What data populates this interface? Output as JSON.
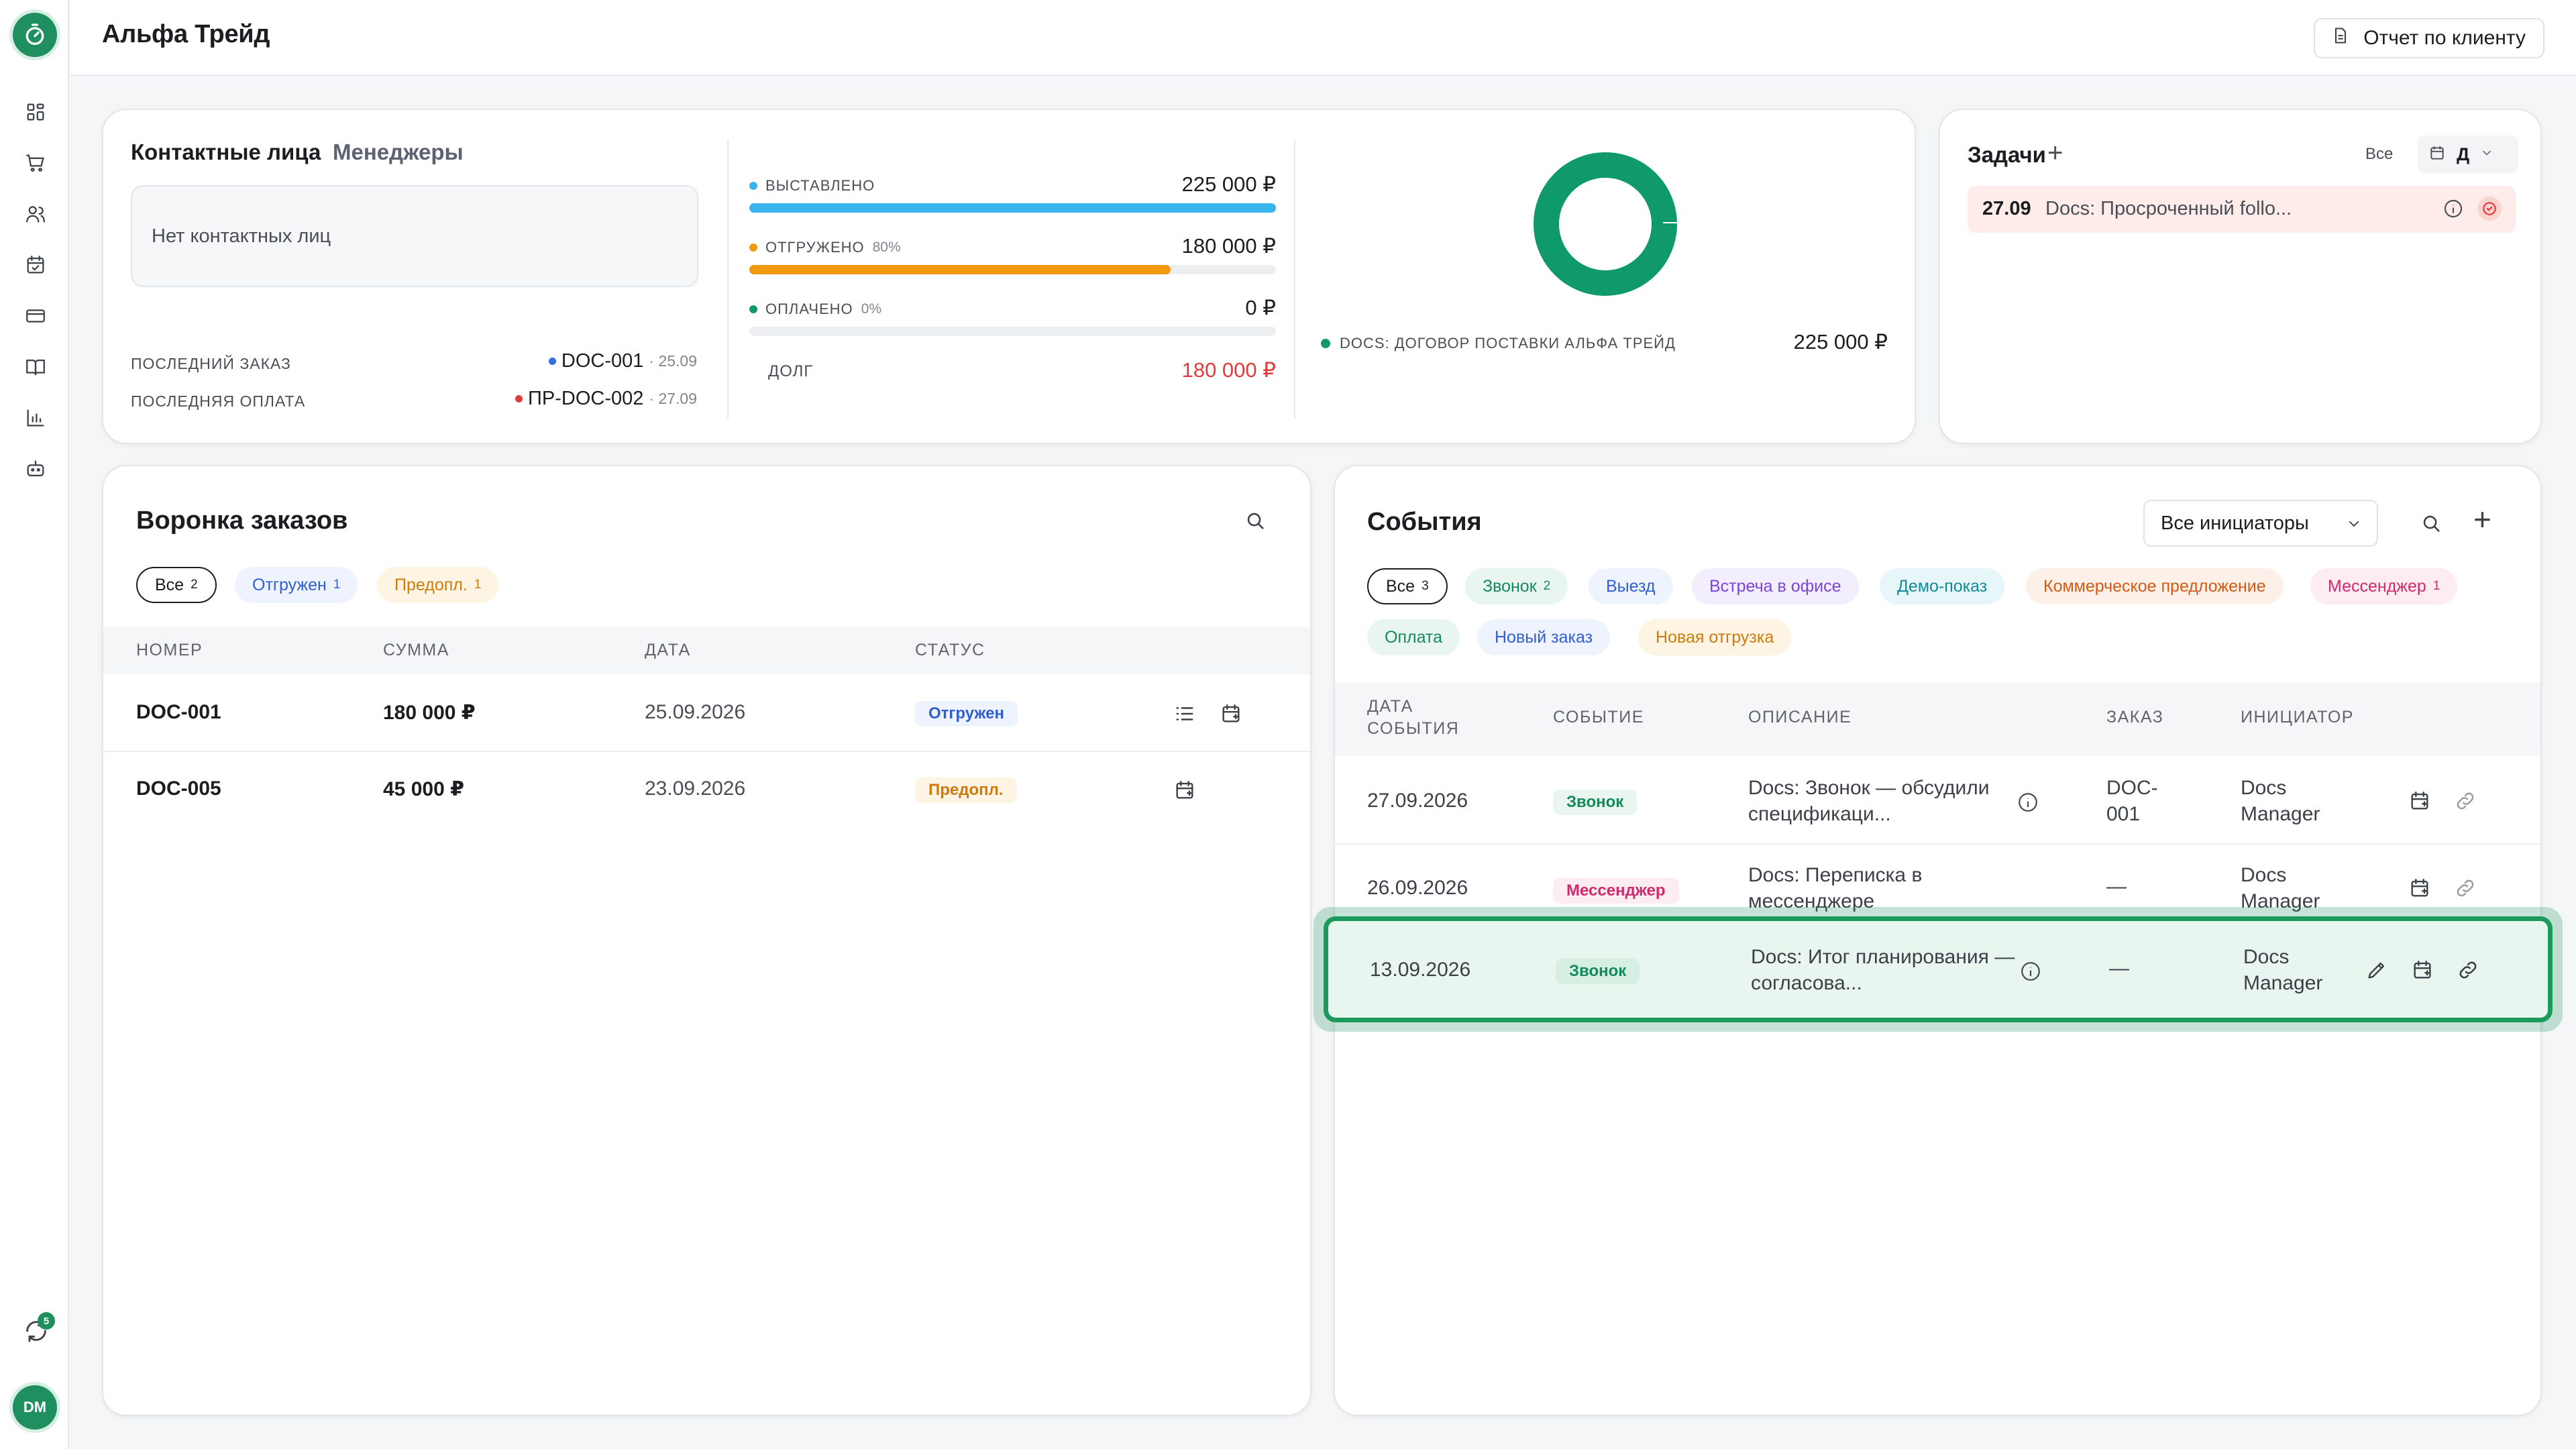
{
  "sidebar": {
    "icons": [
      "dashboard-icon",
      "cart-icon",
      "users-icon",
      "calendar-check-icon",
      "card-icon",
      "book-icon",
      "chart-icon",
      "bot-icon"
    ],
    "sync_badge": "5",
    "avatar": "DM"
  },
  "header": {
    "title": "Альфа Трейд",
    "report_button": "Отчет по клиенту"
  },
  "client": {
    "tabs": [
      "Контактные лица",
      "Менеджеры"
    ],
    "empty_contacts": "Нет контактных лиц",
    "last_order_label": "ПОСЛЕДНИЙ ЗАКАЗ",
    "last_order_value": "DOC-001",
    "last_order_date": "· 25.09",
    "last_payment_label": "ПОСЛЕДНЯЯ ОПЛАТА",
    "last_payment_value": "ПР-DOC-002",
    "last_payment_date": "· 27.09"
  },
  "finance": {
    "invoiced_label": "ВЫСТАВЛЕНО",
    "invoiced_value": "225 000 ₽",
    "invoiced_fill": 1.0,
    "shipped_label": "ОТГРУЖЕНО",
    "shipped_pct": "80%",
    "shipped_value": "180 000 ₽",
    "shipped_fill": 0.8,
    "paid_label": "ОПЛАЧЕНО",
    "paid_pct": "0%",
    "paid_value": "0 ₽",
    "paid_fill": 0.0,
    "debt_label": "ДОЛГ",
    "debt_value": "180 000 ₽"
  },
  "contracts": {
    "legend_label": "DOCS: ДОГОВОР ПОСТАВКИ АЛЬФА ТРЕЙД",
    "legend_value": "225 000 ₽",
    "ring_color": "#109a6b"
  },
  "tasks": {
    "title": "Задачи",
    "filter_all": "Все",
    "filter_period": "Д",
    "item_date": "27.09",
    "item_text": "Docs: Просроченный follo..."
  },
  "funnel": {
    "title": "Воронка заказов",
    "filters": [
      {
        "label": "Все",
        "count": "2"
      },
      {
        "label": "Отгружен",
        "count": "1"
      },
      {
        "label": "Предопл.",
        "count": "1"
      }
    ],
    "columns": [
      "НОМЕР",
      "СУММА",
      "ДАТА",
      "СТАТУС"
    ],
    "rows": [
      {
        "number": "DOC-001",
        "sum": "180 000 ₽",
        "date": "25.09.2026",
        "status": "Отгружен"
      },
      {
        "number": "DOC-005",
        "sum": "45 000 ₽",
        "date": "23.09.2026",
        "status": "Предопл."
      }
    ]
  },
  "events": {
    "title": "События",
    "initiator_select": "Все инициаторы",
    "filters": [
      {
        "label": "Все",
        "count": "3"
      },
      {
        "label": "Звонок",
        "count": "2"
      },
      {
        "label": "Выезд",
        "count": ""
      },
      {
        "label": "Встреча в офисе",
        "count": ""
      },
      {
        "label": "Демо-показ",
        "count": ""
      },
      {
        "label": "Коммерческое предложение",
        "count": ""
      },
      {
        "label": "Мессенджер",
        "count": "1"
      },
      {
        "label": "Оплата",
        "count": ""
      },
      {
        "label": "Новый заказ",
        "count": ""
      },
      {
        "label": "Новая отгрузка",
        "count": ""
      }
    ],
    "columns": {
      "date_line1": "ДАТА",
      "date_line2": "СОБЫТИЯ",
      "event": "СОБЫТИЕ",
      "description": "ОПИСАНИЕ",
      "order": "ЗАКАЗ",
      "initiator": "ИНИЦИАТОР"
    },
    "rows": [
      {
        "date": "27.09.2026",
        "type": "Звонок",
        "desc1": "Docs: Звонок — обсудили",
        "desc2": "спецификаци...",
        "order1": "DOC-",
        "order2": "001",
        "init1": "Docs",
        "init2": "Manager"
      },
      {
        "date": "26.09.2026",
        "type": "Мессенджер",
        "desc1": "Docs: Переписка в",
        "desc2": "мессенджере",
        "order1": "—",
        "order2": "",
        "init1": "Docs",
        "init2": "Manager"
      },
      {
        "date": "13.09.2026",
        "type": "Звонок",
        "desc1": "Docs: Итог планирования —",
        "desc2": "согласова...",
        "order1": "—",
        "order2": "",
        "init1": "Docs",
        "init2": "Manager"
      }
    ]
  }
}
